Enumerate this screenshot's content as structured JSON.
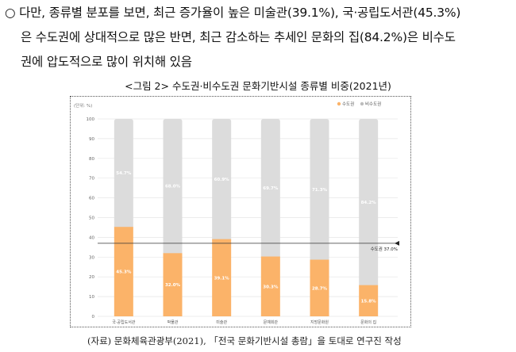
{
  "paragraph": {
    "bullet": "○",
    "line1": "다만, 종류별 분포를 보면, 최근 증가율이 높은 미술관(39.1%), 국·공립도서관(45.3%)",
    "line2": "은 수도권에 상대적으로 많은 반면, 최근 감소하는 추세인 문화의 집(84.2%)은 비수도",
    "line3": "권에 압도적으로 많이 위치해 있음"
  },
  "figure_caption": "<그림 2> 수도권·비수도권 문화기반시설 종류별 비중(2021년)",
  "source_note": "(자료) 문화체육관광부(2021), 「전국 문화기반시설 총람」을 토대로 연구진 작성",
  "chart_data": {
    "type": "bar",
    "stacked": true,
    "unit_label": "(단위: %)",
    "categories": [
      "국·공립도서관",
      "박물관",
      "미술관",
      "문예회관",
      "지방문화원",
      "문화의 집"
    ],
    "series": [
      {
        "name": "수도권",
        "color": "#fbb369",
        "values": [
          45.3,
          32.0,
          39.1,
          30.3,
          28.7,
          15.8
        ],
        "labels": [
          "45.3%",
          "32.0%",
          "39.1%",
          "30.3%",
          "28.7%",
          "15.8%"
        ]
      },
      {
        "name": "비수도권",
        "color": "#dcdcdc",
        "values": [
          54.7,
          68.0,
          60.9,
          69.7,
          71.3,
          84.2
        ],
        "labels": [
          "54.7%",
          "68.0%",
          "60.9%",
          "69.7%",
          "71.3%",
          "84.2%"
        ]
      }
    ],
    "y_ticks": [
      "0",
      "10",
      "20",
      "30",
      "40",
      "50",
      "60",
      "70",
      "80",
      "90",
      "100"
    ],
    "ylim": [
      0,
      100
    ],
    "grid": true,
    "legend_position": "top-right",
    "reference_line": {
      "value": 37.0,
      "label": "수도권 37.0%"
    }
  }
}
